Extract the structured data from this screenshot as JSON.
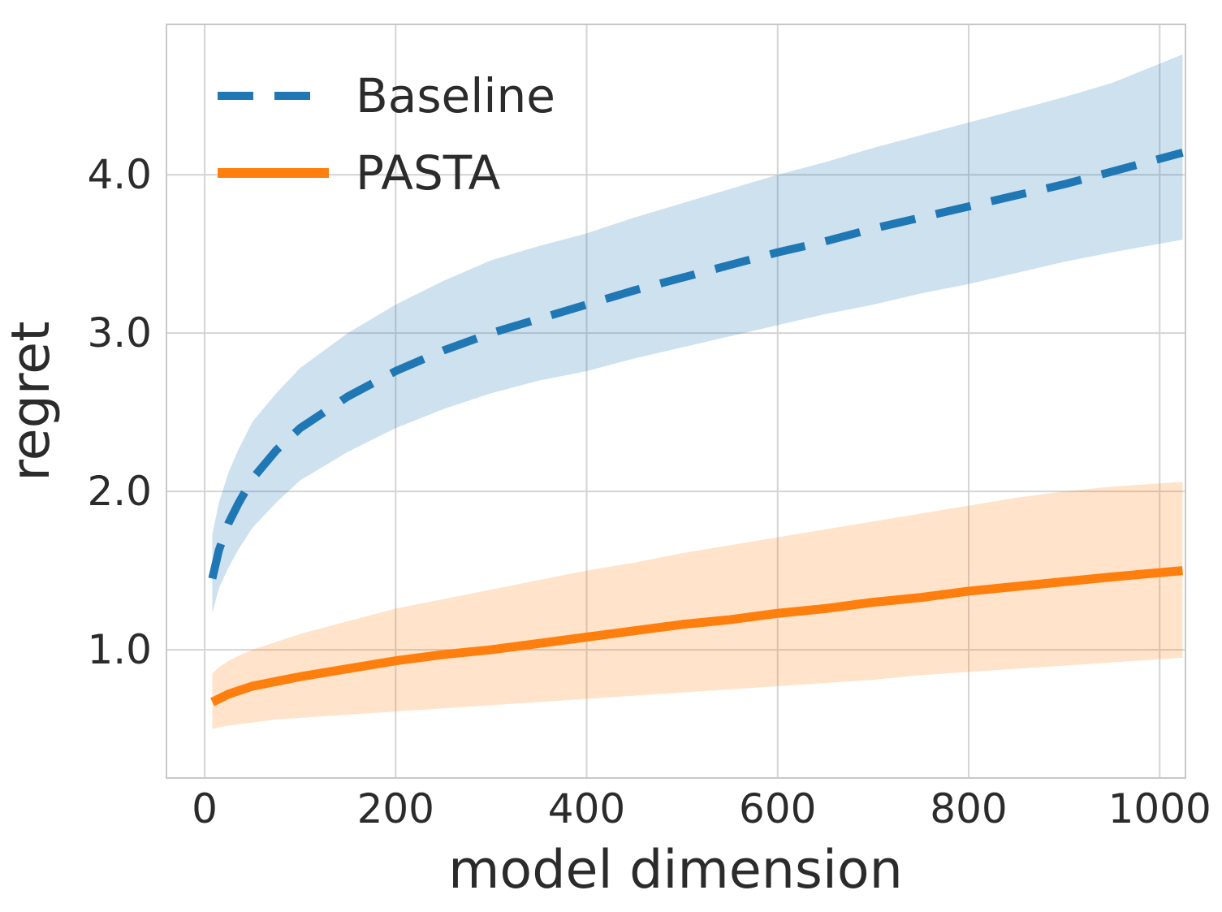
{
  "chart_data": {
    "type": "line",
    "title": "",
    "xlabel": "model dimension",
    "ylabel": "regret",
    "xlim": [
      -40,
      1027
    ],
    "ylim": [
      0.19,
      4.95
    ],
    "grid": true,
    "legend_position": "upper-left",
    "xtick_values": [
      0,
      200,
      400,
      600,
      800,
      1000
    ],
    "xtick_labels": [
      "0",
      "200",
      "400",
      "600",
      "800",
      "1000"
    ],
    "ytick_values": [
      1.0,
      2.0,
      3.0,
      4.0
    ],
    "ytick_labels": [
      "1.0",
      "2.0",
      "3.0",
      "4.0"
    ],
    "grid_color": "#d4d4d4",
    "spine_color": "#c8c8c8",
    "text_color": "#2b2b2b",
    "x": [
      8,
      15,
      25,
      35,
      50,
      75,
      100,
      150,
      200,
      250,
      300,
      350,
      400,
      450,
      500,
      550,
      600,
      650,
      700,
      750,
      800,
      850,
      900,
      950,
      1024
    ],
    "series": [
      {
        "name": "Baseline",
        "color": "#1f77b4",
        "line_style": "dashed",
        "band_opacity": 0.22,
        "mean": [
          1.45,
          1.63,
          1.8,
          1.92,
          2.08,
          2.26,
          2.4,
          2.6,
          2.76,
          2.89,
          3.0,
          3.09,
          3.18,
          3.27,
          3.35,
          3.43,
          3.51,
          3.58,
          3.66,
          3.73,
          3.8,
          3.87,
          3.94,
          4.02,
          4.14
        ],
        "lower": [
          1.23,
          1.39,
          1.52,
          1.63,
          1.77,
          1.93,
          2.07,
          2.25,
          2.4,
          2.52,
          2.62,
          2.7,
          2.76,
          2.84,
          2.91,
          2.98,
          3.05,
          3.12,
          3.18,
          3.25,
          3.31,
          3.38,
          3.45,
          3.51,
          3.59
        ],
        "upper": [
          1.73,
          1.93,
          2.12,
          2.26,
          2.44,
          2.62,
          2.78,
          3.0,
          3.18,
          3.33,
          3.46,
          3.55,
          3.63,
          3.73,
          3.82,
          3.91,
          4.0,
          4.08,
          4.17,
          4.25,
          4.33,
          4.41,
          4.49,
          4.58,
          4.76
        ]
      },
      {
        "name": "PASTA",
        "color": "#ff7f0e",
        "line_style": "solid",
        "band_opacity": 0.22,
        "mean": [
          0.67,
          0.69,
          0.72,
          0.74,
          0.77,
          0.8,
          0.83,
          0.88,
          0.93,
          0.97,
          1.0,
          1.04,
          1.08,
          1.12,
          1.16,
          1.19,
          1.23,
          1.26,
          1.3,
          1.33,
          1.37,
          1.4,
          1.43,
          1.46,
          1.5
        ],
        "lower": [
          0.5,
          0.51,
          0.52,
          0.53,
          0.54,
          0.56,
          0.57,
          0.59,
          0.61,
          0.63,
          0.65,
          0.67,
          0.69,
          0.71,
          0.73,
          0.75,
          0.77,
          0.79,
          0.81,
          0.84,
          0.86,
          0.88,
          0.9,
          0.92,
          0.95
        ],
        "upper": [
          0.85,
          0.89,
          0.93,
          0.96,
          1.0,
          1.05,
          1.1,
          1.18,
          1.26,
          1.32,
          1.38,
          1.44,
          1.5,
          1.55,
          1.61,
          1.66,
          1.71,
          1.76,
          1.81,
          1.86,
          1.91,
          1.96,
          2.0,
          2.03,
          2.06
        ]
      }
    ]
  }
}
